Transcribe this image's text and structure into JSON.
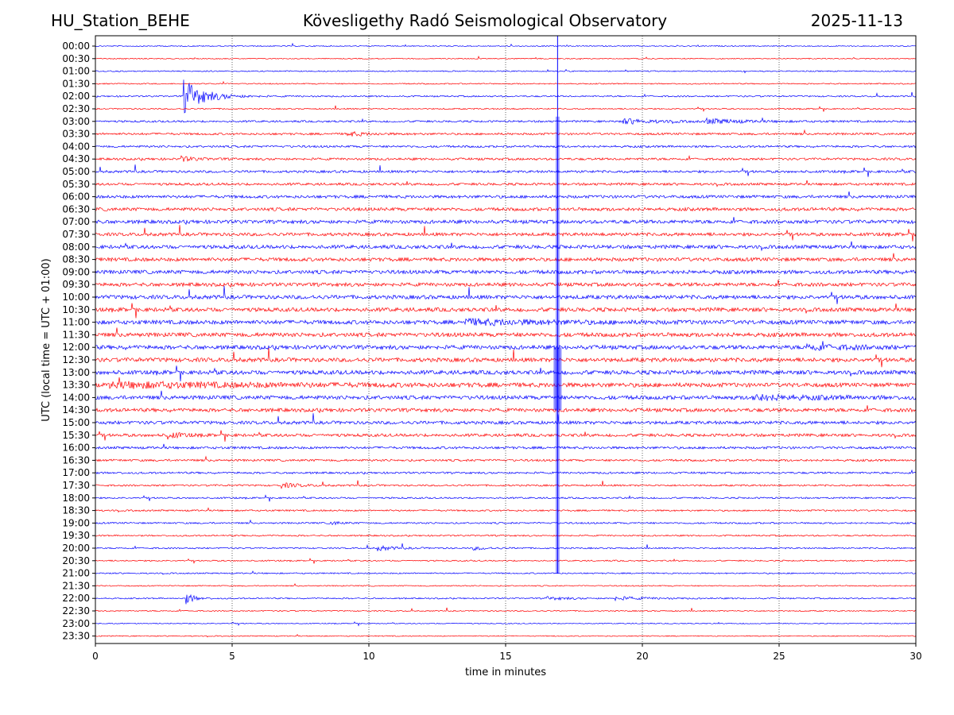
{
  "header": {
    "station": "HU_Station_BEHE",
    "observatory": "Kövesligethy Radó Seismological Observatory",
    "date": "2025-11-13"
  },
  "chart_data": {
    "type": "line",
    "title": "Kövesligethy Radó Seismological Observatory",
    "xlabel": "time in minutes",
    "ylabel": "UTC (local time = UTC + 01:00)",
    "xlim": [
      0,
      30
    ],
    "x_ticks": [
      0,
      5,
      10,
      15,
      20,
      25,
      30
    ],
    "x_grid": [
      5,
      10,
      15,
      20,
      25
    ],
    "trace_labels": [
      "00:00",
      "00:30",
      "01:00",
      "01:30",
      "02:00",
      "02:30",
      "03:00",
      "03:30",
      "04:00",
      "04:30",
      "05:00",
      "05:30",
      "06:00",
      "06:30",
      "07:00",
      "07:30",
      "08:00",
      "08:30",
      "09:00",
      "09:30",
      "10:00",
      "10:30",
      "11:00",
      "11:30",
      "12:00",
      "12:30",
      "13:00",
      "13:30",
      "14:00",
      "14:30",
      "15:00",
      "15:30",
      "16:00",
      "16:30",
      "17:00",
      "17:30",
      "18:00",
      "18:30",
      "19:00",
      "19:30",
      "20:00",
      "20:30",
      "21:00",
      "21:30",
      "22:00",
      "22:30",
      "23:00",
      "23:30"
    ],
    "trace_colors": [
      "#0000ff",
      "#ff0000"
    ],
    "noise_level": [
      0.6,
      0.6,
      0.7,
      0.7,
      0.9,
      0.8,
      1.2,
      1.3,
      1.3,
      1.4,
      1.5,
      1.5,
      1.8,
      2.0,
      2.2,
      2.0,
      2.2,
      2.2,
      2.3,
      2.2,
      2.4,
      2.4,
      2.5,
      2.5,
      2.5,
      2.5,
      2.5,
      2.5,
      2.4,
      2.2,
      2.0,
      1.8,
      1.5,
      1.3,
      1.2,
      1.1,
      1.0,
      1.0,
      1.0,
      0.9,
      0.9,
      0.8,
      0.8,
      0.7,
      0.8,
      0.7,
      0.6,
      0.6
    ],
    "events": [
      {
        "trace": "02:00",
        "start_min": 3.2,
        "peak": 22,
        "decay_min": 0.7
      },
      {
        "trace": "03:00",
        "start_min": 19.3,
        "peak": 3,
        "decay_min": 1.2
      },
      {
        "trace": "03:00",
        "start_min": 22.3,
        "peak": 3,
        "decay_min": 1.2
      },
      {
        "trace": "03:30",
        "start_min": 9.2,
        "peak": 3,
        "decay_min": 0.6
      },
      {
        "trace": "04:30",
        "start_min": 3.1,
        "peak": 3,
        "decay_min": 0.5
      },
      {
        "trace": "11:00",
        "start_min": 13.5,
        "peak": 3,
        "decay_min": 3.0
      },
      {
        "trace": "12:00",
        "start_min": 26.0,
        "peak": 3,
        "decay_min": 1.5
      },
      {
        "trace": "13:30",
        "start_min": 0.5,
        "peak": 3,
        "decay_min": 6.0
      },
      {
        "trace": "14:00",
        "start_min": 24.0,
        "peak": 3,
        "decay_min": 2.0
      },
      {
        "trace": "15:30",
        "start_min": 2.6,
        "peak": 4,
        "decay_min": 0.5
      },
      {
        "trace": "17:30",
        "start_min": 6.8,
        "peak": 3,
        "decay_min": 0.6
      },
      {
        "trace": "19:00",
        "start_min": 8.6,
        "peak": 3,
        "decay_min": 0.3
      },
      {
        "trace": "20:00",
        "start_min": 10.3,
        "peak": 3,
        "decay_min": 0.6
      },
      {
        "trace": "20:00",
        "start_min": 13.8,
        "peak": 2,
        "decay_min": 0.5
      },
      {
        "trace": "22:00",
        "start_min": 3.3,
        "peak": 7,
        "decay_min": 0.3
      },
      {
        "trace": "22:00",
        "start_min": 16.5,
        "peak": 2,
        "decay_min": 0.8
      },
      {
        "trace": "22:00",
        "start_min": 19.0,
        "peak": 2,
        "decay_min": 1.2
      }
    ],
    "spike_minute": 16.9,
    "spike_first_trace": "03:00",
    "spike_last_trace": "21:00"
  }
}
